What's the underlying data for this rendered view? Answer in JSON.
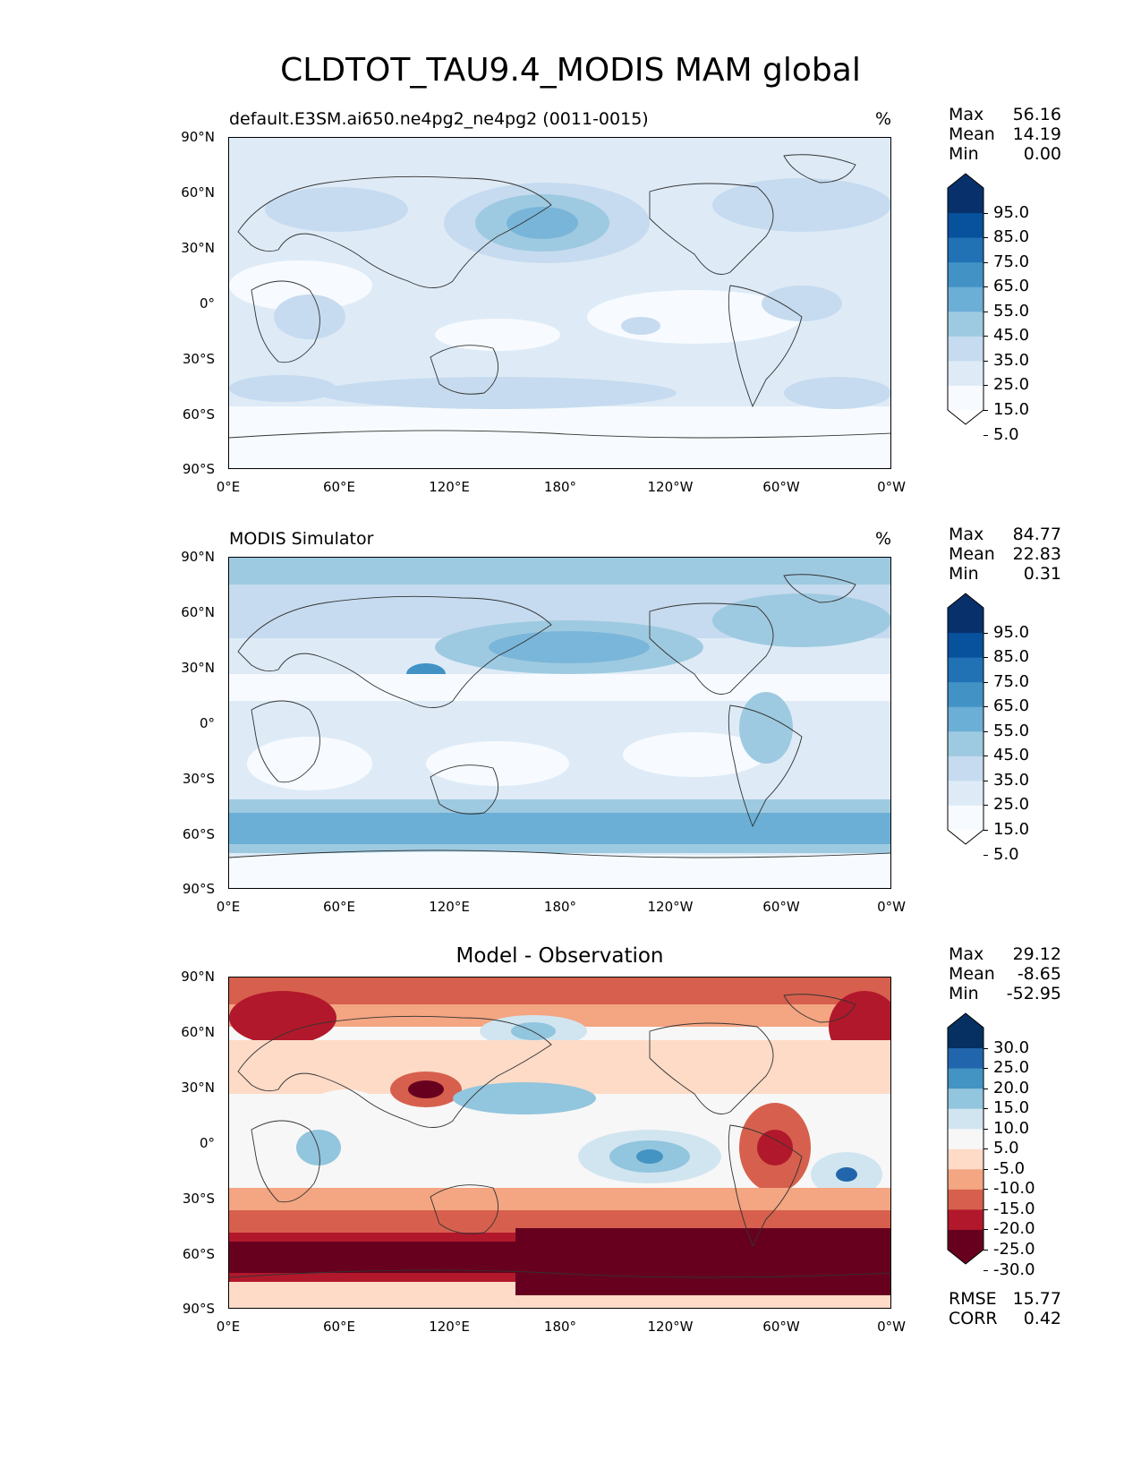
{
  "title": "CLDTOT_TAU9.4_MODIS MAM global",
  "panels": [
    {
      "title_left": "default.E3SM.ai650.ne4pg2_ne4pg2 (0011-0015)",
      "title_center": "",
      "units": "%",
      "stats": {
        "max_label": "Max",
        "max": "56.16",
        "mean_label": "Mean",
        "mean": "14.19",
        "min_label": "Min",
        "min": "0.00"
      },
      "colorbar_levels": [
        "95.0",
        "85.0",
        "75.0",
        "65.0",
        "55.0",
        "45.0",
        "35.0",
        "25.0",
        "15.0",
        "5.0"
      ]
    },
    {
      "title_left": "MODIS Simulator",
      "title_center": "",
      "units": "%",
      "stats": {
        "max_label": "Max",
        "max": "84.77",
        "mean_label": "Mean",
        "mean": "22.83",
        "min_label": "Min",
        "min": "0.31"
      },
      "colorbar_levels": [
        "95.0",
        "85.0",
        "75.0",
        "65.0",
        "55.0",
        "45.0",
        "35.0",
        "25.0",
        "15.0",
        "5.0"
      ]
    },
    {
      "title_left": "",
      "title_center": "Model - Observation",
      "units": "",
      "stats": {
        "max_label": "Max",
        "max": "29.12",
        "mean_label": "Mean",
        "mean": "-8.65",
        "min_label": "Min",
        "min": "-52.95"
      },
      "colorbar_levels": [
        "30.0",
        "25.0",
        "20.0",
        "15.0",
        "10.0",
        "5.0",
        "-5.0",
        "-10.0",
        "-15.0",
        "-20.0",
        "-25.0",
        "-30.0"
      ],
      "metrics": {
        "rmse_label": "RMSE",
        "rmse": "15.77",
        "corr_label": "CORR",
        "corr": "0.42"
      }
    }
  ],
  "axes": {
    "lat_ticks": [
      "90°N",
      "60°N",
      "30°N",
      "0°",
      "30°S",
      "60°S",
      "90°S"
    ],
    "lon_ticks": [
      "0°E",
      "60°E",
      "120°E",
      "180°",
      "120°W",
      "60°W",
      "0°W"
    ]
  },
  "colors": {
    "sequential": [
      "#f7fbff",
      "#deebf7",
      "#c6dbef",
      "#9ecae1",
      "#6baed6",
      "#4292c6",
      "#2171b5",
      "#08519c",
      "#08306b"
    ],
    "diverging_neg": [
      "#fddbc7",
      "#f4a582",
      "#d6604d",
      "#b2182b",
      "#67001f"
    ],
    "diverging_pos": [
      "#d1e5f0",
      "#92c5de",
      "#4393c3",
      "#2166ac",
      "#053061"
    ],
    "neutral": "#f7f7f7"
  },
  "chart_data": [
    {
      "type": "heatmap",
      "title": "default.E3SM.ai650.ne4pg2_ne4pg2 (0011-0015)",
      "xlabel": "",
      "ylabel": "",
      "x_ticks": [
        "0°E",
        "60°E",
        "120°E",
        "180°",
        "120°W",
        "60°W",
        "0°W"
      ],
      "y_ticks": [
        "90°N",
        "60°N",
        "30°N",
        "0°",
        "30°S",
        "60°S",
        "90°S"
      ],
      "units": "%",
      "levels": [
        5,
        15,
        25,
        35,
        45,
        55,
        65,
        75,
        85,
        95
      ],
      "stats": {
        "max": 56.16,
        "mean": 14.19,
        "min": 0.0
      }
    },
    {
      "type": "heatmap",
      "title": "MODIS Simulator",
      "xlabel": "",
      "ylabel": "",
      "x_ticks": [
        "0°E",
        "60°E",
        "120°E",
        "180°",
        "120°W",
        "60°W",
        "0°W"
      ],
      "y_ticks": [
        "90°N",
        "60°N",
        "30°N",
        "0°",
        "30°S",
        "60°S",
        "90°S"
      ],
      "units": "%",
      "levels": [
        5,
        15,
        25,
        35,
        45,
        55,
        65,
        75,
        85,
        95
      ],
      "stats": {
        "max": 84.77,
        "mean": 22.83,
        "min": 0.31
      }
    },
    {
      "type": "heatmap",
      "title": "Model - Observation",
      "xlabel": "",
      "ylabel": "",
      "x_ticks": [
        "0°E",
        "60°E",
        "120°E",
        "180°",
        "120°W",
        "60°W",
        "0°W"
      ],
      "y_ticks": [
        "90°N",
        "60°N",
        "30°N",
        "0°",
        "30°S",
        "60°S",
        "90°S"
      ],
      "levels": [
        -30,
        -25,
        -20,
        -15,
        -10,
        -5,
        5,
        10,
        15,
        20,
        25,
        30
      ],
      "stats": {
        "max": 29.12,
        "mean": -8.65,
        "min": -52.95,
        "rmse": 15.77,
        "corr": 0.42
      }
    }
  ]
}
